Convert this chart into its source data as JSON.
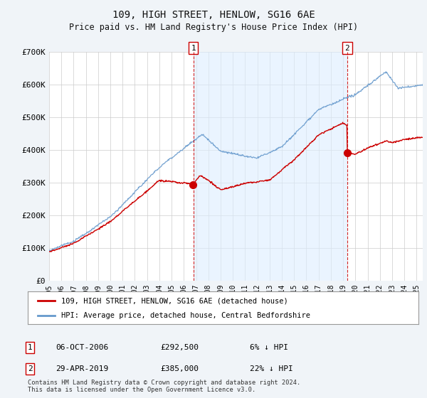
{
  "title": "109, HIGH STREET, HENLOW, SG16 6AE",
  "subtitle": "Price paid vs. HM Land Registry's House Price Index (HPI)",
  "ylabel_ticks": [
    "£0",
    "£100K",
    "£200K",
    "£300K",
    "£400K",
    "£500K",
    "£600K",
    "£700K"
  ],
  "ytick_values": [
    0,
    100000,
    200000,
    300000,
    400000,
    500000,
    600000,
    700000
  ],
  "ylim": [
    0,
    700000
  ],
  "xlim_start": 1995.0,
  "xlim_end": 2025.5,
  "background_color": "#f0f4f8",
  "plot_bg_color": "#ffffff",
  "grid_color": "#cccccc",
  "shade_color": "#ddeeff",
  "sale1": {
    "date_num": 2006.77,
    "price": 292500,
    "label": "1",
    "date_str": "06-OCT-2006",
    "pct": "6% ↓ HPI"
  },
  "sale2": {
    "date_num": 2019.33,
    "price": 385000,
    "label": "2",
    "date_str": "29-APR-2019",
    "pct": "22% ↓ HPI"
  },
  "legend_line1": "109, HIGH STREET, HENLOW, SG16 6AE (detached house)",
  "legend_line2": "HPI: Average price, detached house, Central Bedfordshire",
  "footnote": "Contains HM Land Registry data © Crown copyright and database right 2024.\nThis data is licensed under the Open Government Licence v3.0.",
  "line_color_red": "#cc0000",
  "line_color_blue": "#6699cc",
  "dashed_line_color": "#cc0000",
  "xtick_years": [
    1995,
    1996,
    1997,
    1998,
    1999,
    2000,
    2001,
    2002,
    2003,
    2004,
    2005,
    2006,
    2007,
    2008,
    2009,
    2010,
    2011,
    2012,
    2013,
    2014,
    2015,
    2016,
    2017,
    2018,
    2019,
    2020,
    2021,
    2022,
    2023,
    2024,
    2025
  ]
}
